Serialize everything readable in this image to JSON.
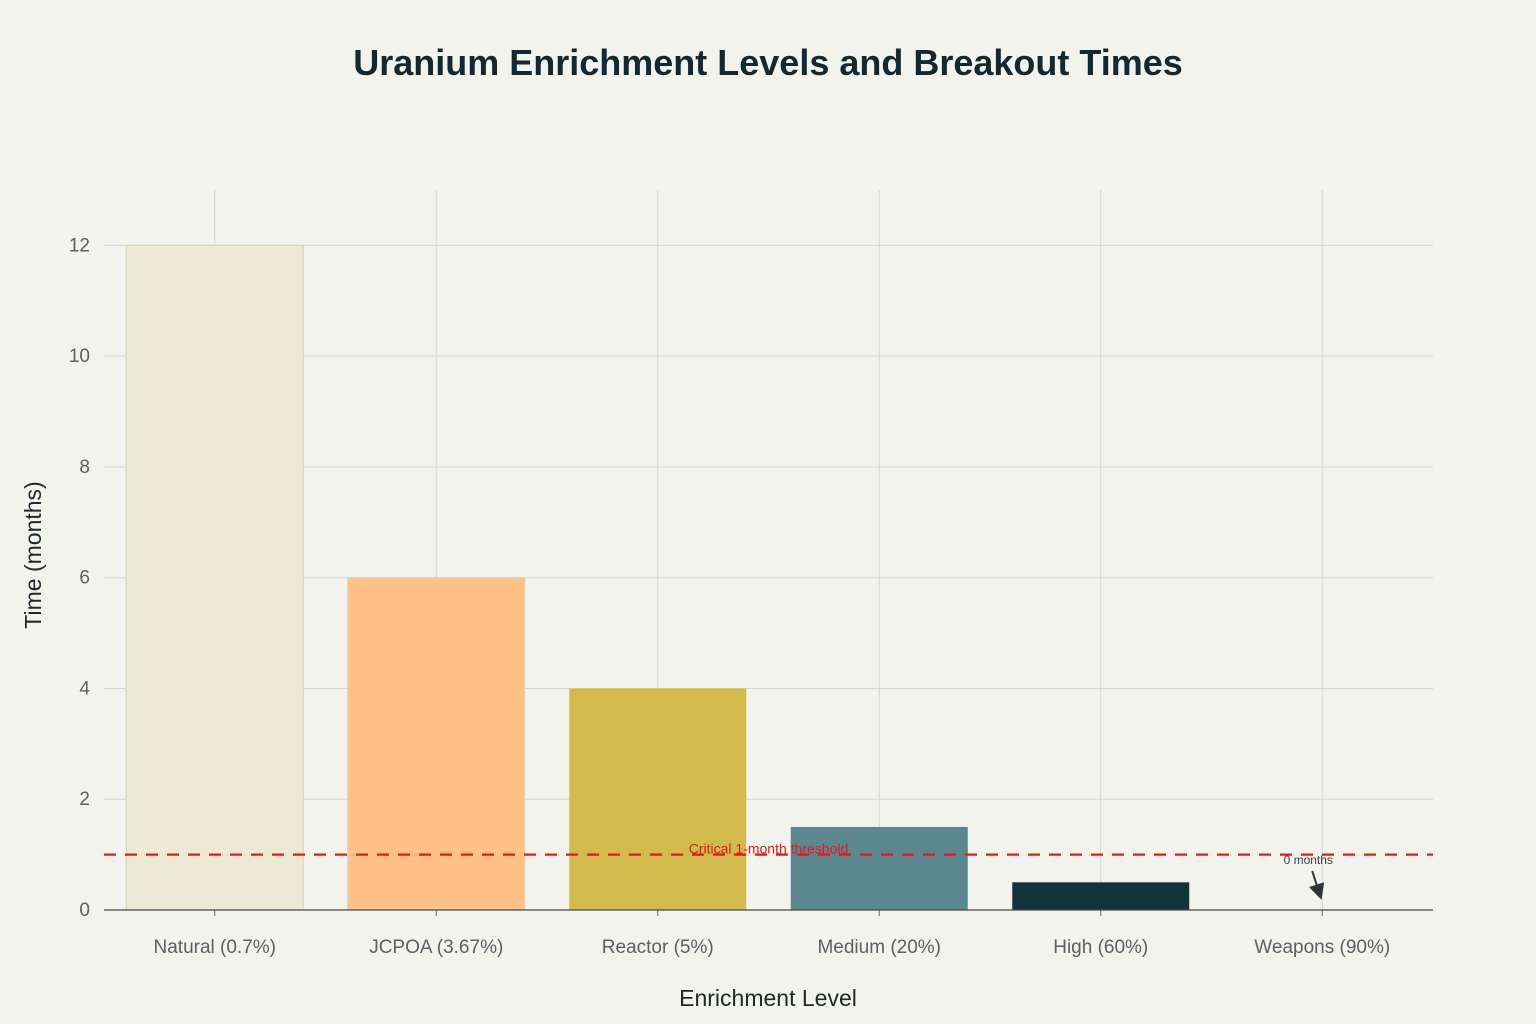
{
  "chart_data": {
    "type": "bar",
    "title": "Uranium Enrichment Levels and Breakout Times",
    "xlabel": "Enrichment Level",
    "ylabel": "Time (months)",
    "categories": [
      "Natural (0.7%)",
      "JCPOA (3.67%)",
      "Reactor (5%)",
      "Medium (20%)",
      "High (60%)",
      "Weapons (90%)"
    ],
    "values": [
      12,
      6,
      4,
      1.5,
      0.5,
      0
    ],
    "colors": [
      "#ecead5",
      "#ffc185",
      "#d2ba4c",
      "#5d878f",
      "#13343b",
      "#944454"
    ],
    "ylim": [
      0,
      13
    ],
    "yticks": [
      0,
      2,
      4,
      6,
      8,
      10,
      12
    ],
    "grid": true,
    "threshold": {
      "value": 1,
      "label": "Critical 1-month threshold",
      "color": "#e11b1b"
    },
    "annotation": {
      "category": "Weapons (90%)",
      "value": 0,
      "text": "0 months"
    }
  }
}
